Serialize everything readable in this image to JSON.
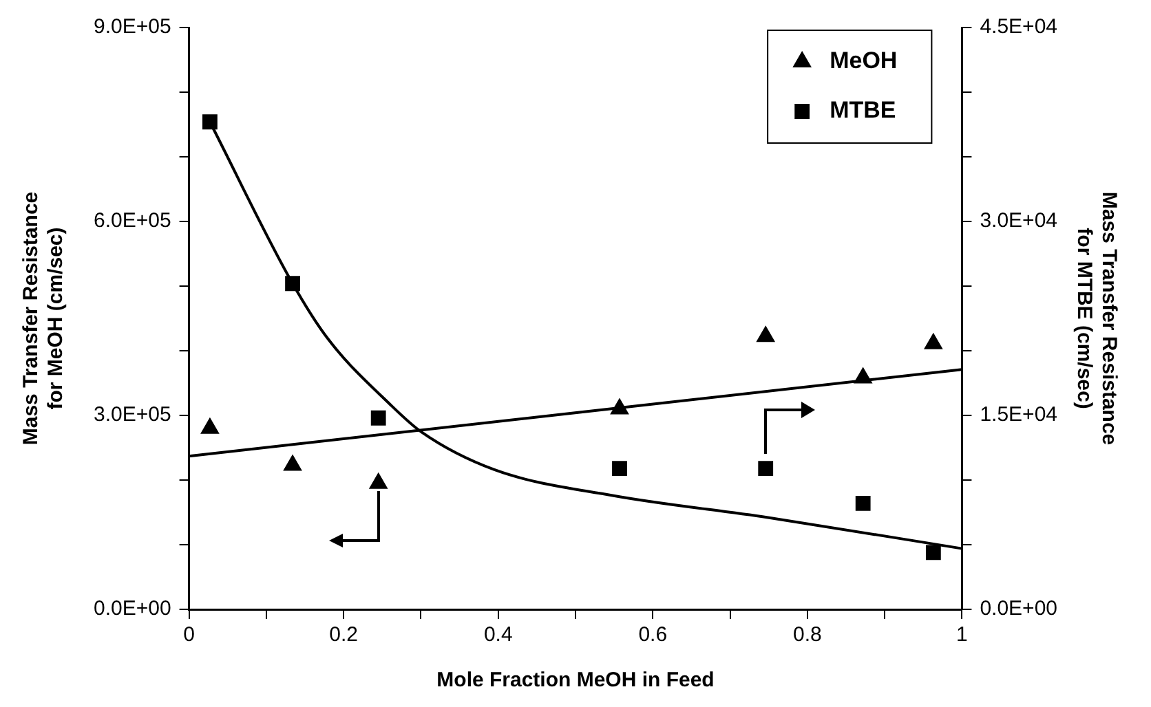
{
  "chart_data": {
    "type": "scatter",
    "xlabel": "Mole Fraction MeOH in Feed",
    "ylabel": "Mass Transfer Resistance for MeOH (cm/sec)",
    "y2label": "Mass Transfer Resistance for MTBE (cm/sec)",
    "xlim": [
      0,
      1
    ],
    "xticks": [
      0,
      0.2,
      0.4,
      0.6,
      0.8,
      1
    ],
    "ylim": [
      0,
      900000
    ],
    "yticks": [
      {
        "value": 0,
        "label": "0.0E+00"
      },
      {
        "value": 300000,
        "label": "3.0E+05"
      },
      {
        "value": 600000,
        "label": "6.0E+05"
      },
      {
        "value": 900000,
        "label": "9.0E+05"
      }
    ],
    "y2lim": [
      0,
      45000
    ],
    "y2ticks": [
      {
        "value": 0,
        "label": "0.0E+00"
      },
      {
        "value": 15000,
        "label": "1.5E+04"
      },
      {
        "value": 30000,
        "label": "3.0E+04"
      },
      {
        "value": 45000,
        "label": "4.5E+04"
      }
    ],
    "grid": false,
    "legend": "top right",
    "series": [
      {
        "name": "MeOH",
        "marker": "triangle",
        "color": "#000000",
        "x": [
          0.027,
          0.134,
          0.245,
          0.557,
          0.746,
          0.872,
          0.963
        ],
        "values": [
          280000,
          223000,
          195000,
          310000,
          422000,
          358000,
          411000
        ]
      },
      {
        "name": "MTBE",
        "marker": "square",
        "axis": "y2",
        "color": "#000000",
        "x": [
          0.027,
          0.134,
          0.245,
          0.557,
          0.746,
          0.872,
          0.963
        ],
        "values": [
          37700,
          25200,
          14800,
          10900,
          10900,
          8200,
          4400
        ]
      },
      {
        "type": "line",
        "marker": "none",
        "color": "#000000",
        "x": [
          0,
          1
        ],
        "values": [
          237000,
          371000
        ]
      },
      {
        "type": "line",
        "marker": "none",
        "axis": "y2",
        "color": "#000000",
        "x": [
          0.027,
          0.134,
          0.18,
          0.261,
          0.301,
          0.395,
          0.548,
          0.749,
          1.0
        ],
        "values": [
          37700,
          25200,
          20900,
          15800,
          13700,
          10800,
          8800,
          7100,
          4700
        ]
      }
    ]
  }
}
